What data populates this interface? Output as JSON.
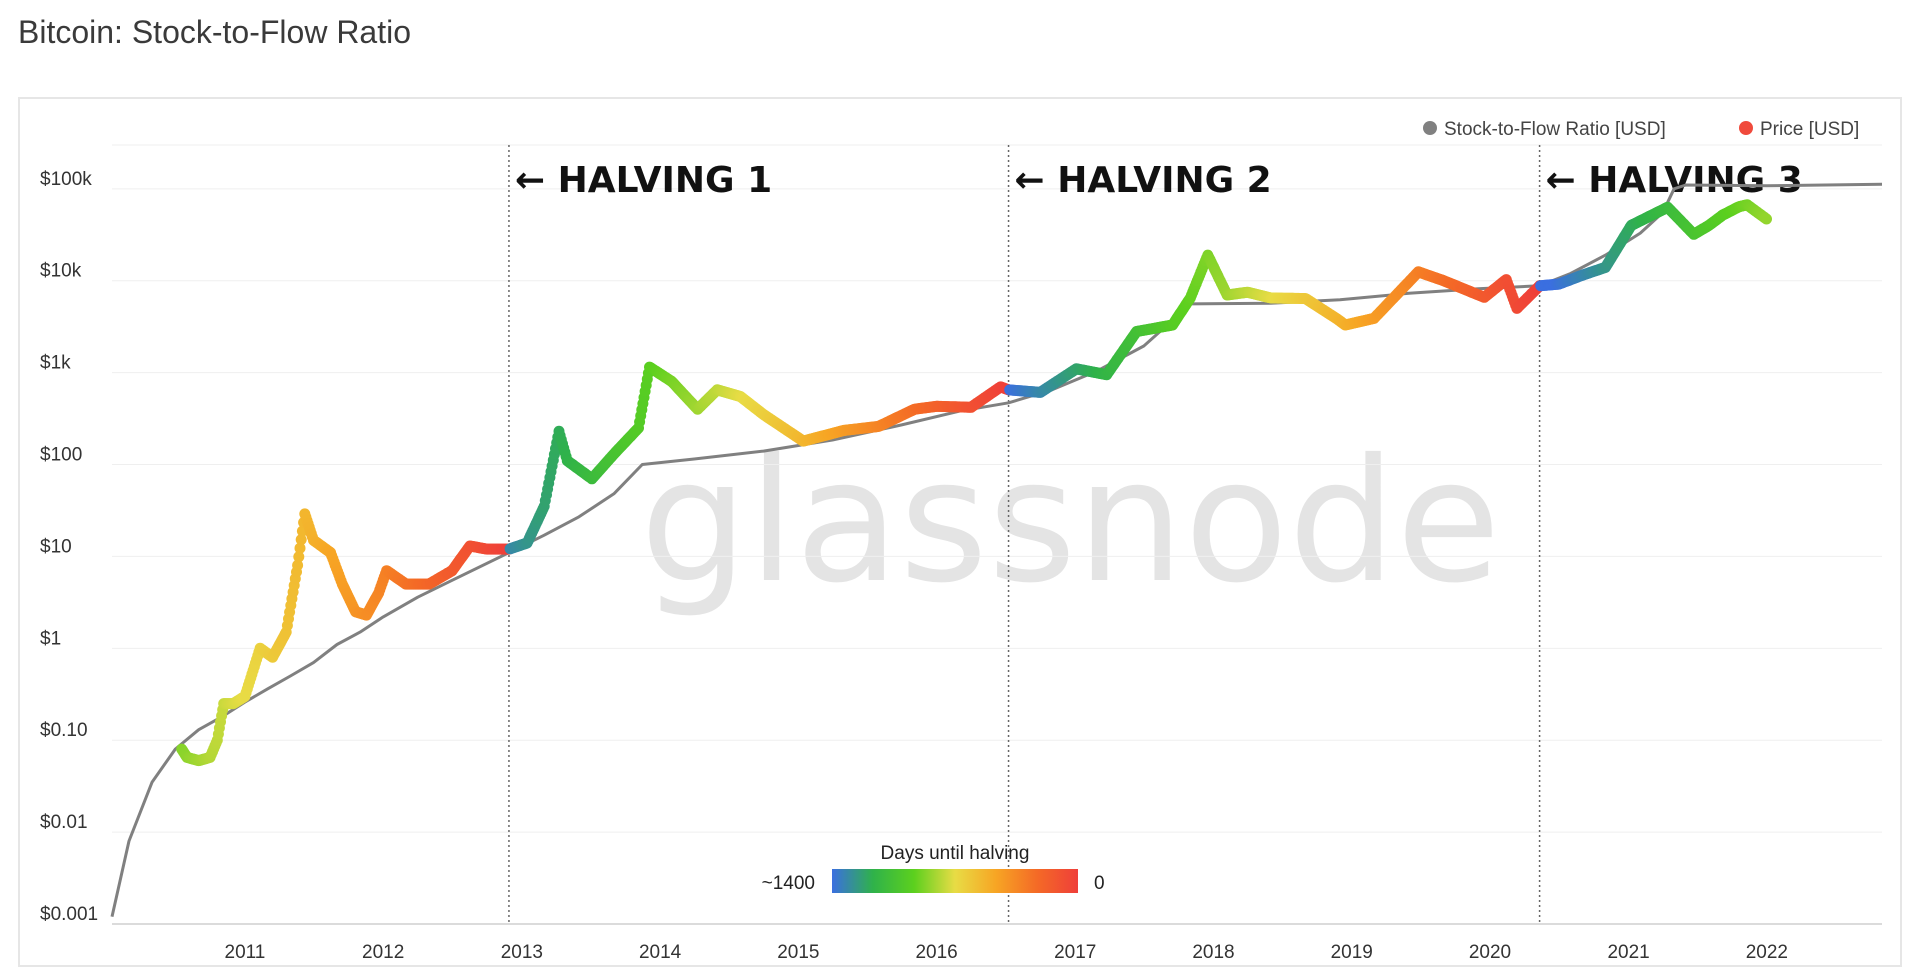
{
  "page": {
    "title": "Bitcoin: Stock-to-Flow Ratio"
  },
  "watermark": "glassnode",
  "chart_data": {
    "type": "scatter",
    "title": "Bitcoin: Stock-to-Flow Ratio",
    "xlabel": "",
    "ylabel": "",
    "y_scale": "log",
    "ylim": [
      0.001,
      300000
    ],
    "xlim": [
      "2010-01-15",
      "2022-11-01"
    ],
    "grid": true,
    "legend_position": "top-right",
    "y_ticks": [
      {
        "value": 0.001,
        "label": "$0.001"
      },
      {
        "value": 0.01,
        "label": "$0.01"
      },
      {
        "value": 0.1,
        "label": "$0.10"
      },
      {
        "value": 1,
        "label": "$1"
      },
      {
        "value": 10,
        "label": "$10"
      },
      {
        "value": 100,
        "label": "$100"
      },
      {
        "value": 1000,
        "label": "$1k"
      },
      {
        "value": 10000,
        "label": "$10k"
      },
      {
        "value": 100000,
        "label": "$100k"
      }
    ],
    "x_ticks": [
      {
        "value": "2011-01-01",
        "label": "2011"
      },
      {
        "value": "2012-01-01",
        "label": "2012"
      },
      {
        "value": "2013-01-01",
        "label": "2013"
      },
      {
        "value": "2014-01-01",
        "label": "2014"
      },
      {
        "value": "2015-01-01",
        "label": "2015"
      },
      {
        "value": "2016-01-01",
        "label": "2016"
      },
      {
        "value": "2017-01-01",
        "label": "2017"
      },
      {
        "value": "2018-01-01",
        "label": "2018"
      },
      {
        "value": "2019-01-01",
        "label": "2019"
      },
      {
        "value": "2020-01-01",
        "label": "2020"
      },
      {
        "value": "2021-01-01",
        "label": "2021"
      },
      {
        "value": "2022-01-01",
        "label": "2022"
      }
    ],
    "halvings": [
      {
        "date": "2012-11-28",
        "label": "← HALVING 1"
      },
      {
        "date": "2016-07-09",
        "label": "← HALVING 2"
      },
      {
        "date": "2020-05-11",
        "label": "← HALVING 3"
      }
    ],
    "legend": [
      {
        "name": "Stock-to-Flow Ratio [USD]",
        "color": "#808080"
      },
      {
        "name": "Price [USD]",
        "color": "#f04a3c"
      }
    ],
    "colorbar": {
      "title": "Days until halving",
      "min_label": "~1400",
      "max_label": "0",
      "colors": [
        "#3b6fe0",
        "#2fb24a",
        "#5cd01e",
        "#e8dc45",
        "#f7a524",
        "#f46a26",
        "#ef3f3a"
      ]
    },
    "series": [
      {
        "name": "Stock-to-Flow Ratio [USD]",
        "color": "#808080",
        "points": [
          [
            "2010-01-15",
            0.0012
          ],
          [
            "2010-03-01",
            0.008
          ],
          [
            "2010-05-01",
            0.035
          ],
          [
            "2010-07-01",
            0.08
          ],
          [
            "2010-09-01",
            0.13
          ],
          [
            "2010-11-01",
            0.18
          ],
          [
            "2011-01-01",
            0.26
          ],
          [
            "2011-03-01",
            0.36
          ],
          [
            "2011-05-01",
            0.5
          ],
          [
            "2011-07-01",
            0.7
          ],
          [
            "2011-09-01",
            1.1
          ],
          [
            "2011-11-01",
            1.5
          ],
          [
            "2012-01-01",
            2.2
          ],
          [
            "2012-04-01",
            3.6
          ],
          [
            "2012-07-01",
            5.5
          ],
          [
            "2012-11-28",
            11
          ],
          [
            "2013-03-01",
            17
          ],
          [
            "2013-06-01",
            27
          ],
          [
            "2013-09-01",
            48
          ],
          [
            "2013-11-15",
            100
          ],
          [
            "2014-04-01",
            115
          ],
          [
            "2014-10-01",
            140
          ],
          [
            "2015-04-01",
            185
          ],
          [
            "2015-10-01",
            270
          ],
          [
            "2016-03-01",
            380
          ],
          [
            "2016-07-09",
            470
          ],
          [
            "2016-11-01",
            650
          ],
          [
            "2017-03-01",
            1050
          ],
          [
            "2017-07-01",
            1950
          ],
          [
            "2017-09-01",
            3300
          ],
          [
            "2017-11-01",
            5600
          ],
          [
            "2018-06-01",
            5700
          ],
          [
            "2018-12-01",
            6200
          ],
          [
            "2019-06-01",
            7300
          ],
          [
            "2019-12-01",
            8200
          ],
          [
            "2020-05-11",
            8800
          ],
          [
            "2020-08-01",
            12000
          ],
          [
            "2020-11-01",
            19000
          ],
          [
            "2021-02-01",
            33000
          ],
          [
            "2021-04-01",
            55000
          ],
          [
            "2021-05-01",
            100000
          ],
          [
            "2021-06-01",
            110000
          ],
          [
            "2022-01-01",
            108000
          ],
          [
            "2022-11-01",
            112000
          ]
        ]
      },
      {
        "name": "Price [USD]",
        "color": "#f04a3c",
        "points": [
          [
            "2010-07-18",
            0.08
          ],
          [
            "2010-08-01",
            0.065
          ],
          [
            "2010-09-01",
            0.06
          ],
          [
            "2010-10-01",
            0.065
          ],
          [
            "2010-10-20",
            0.1
          ],
          [
            "2010-11-06",
            0.25
          ],
          [
            "2010-12-01",
            0.25
          ],
          [
            "2011-01-01",
            0.3
          ],
          [
            "2011-02-10",
            1.0
          ],
          [
            "2011-03-15",
            0.8
          ],
          [
            "2011-04-20",
            1.5
          ],
          [
            "2011-05-20",
            8
          ],
          [
            "2011-06-08",
            29
          ],
          [
            "2011-07-01",
            15
          ],
          [
            "2011-08-15",
            11
          ],
          [
            "2011-09-15",
            5
          ],
          [
            "2011-10-20",
            2.5
          ],
          [
            "2011-11-18",
            2.3
          ],
          [
            "2011-12-20",
            4
          ],
          [
            "2012-01-10",
            7
          ],
          [
            "2012-03-01",
            5
          ],
          [
            "2012-05-01",
            5
          ],
          [
            "2012-07-01",
            7
          ],
          [
            "2012-08-17",
            13
          ],
          [
            "2012-10-01",
            12
          ],
          [
            "2012-11-28",
            12
          ],
          [
            "2013-01-15",
            14
          ],
          [
            "2013-03-01",
            35
          ],
          [
            "2013-04-09",
            230
          ],
          [
            "2013-05-01",
            110
          ],
          [
            "2013-07-05",
            70
          ],
          [
            "2013-09-01",
            130
          ],
          [
            "2013-11-05",
            250
          ],
          [
            "2013-12-04",
            1150
          ],
          [
            "2014-02-01",
            800
          ],
          [
            "2014-04-10",
            400
          ],
          [
            "2014-06-01",
            650
          ],
          [
            "2014-08-01",
            550
          ],
          [
            "2014-10-01",
            350
          ],
          [
            "2015-01-14",
            180
          ],
          [
            "2015-05-01",
            235
          ],
          [
            "2015-08-01",
            260
          ],
          [
            "2015-11-04",
            400
          ],
          [
            "2016-01-01",
            430
          ],
          [
            "2016-04-01",
            420
          ],
          [
            "2016-06-18",
            700
          ],
          [
            "2016-07-09",
            650
          ],
          [
            "2016-10-01",
            610
          ],
          [
            "2017-01-04",
            1100
          ],
          [
            "2017-03-25",
            950
          ],
          [
            "2017-06-12",
            2800
          ],
          [
            "2017-09-15",
            3300
          ],
          [
            "2017-11-01",
            6500
          ],
          [
            "2017-12-17",
            19000
          ],
          [
            "2018-02-06",
            7000
          ],
          [
            "2018-04-01",
            7500
          ],
          [
            "2018-06-01",
            6500
          ],
          [
            "2018-09-01",
            6400
          ],
          [
            "2018-11-25",
            3800
          ],
          [
            "2018-12-15",
            3300
          ],
          [
            "2019-03-01",
            3900
          ],
          [
            "2019-06-26",
            12500
          ],
          [
            "2019-09-01",
            10000
          ],
          [
            "2019-12-17",
            6600
          ],
          [
            "2020-02-13",
            10300
          ],
          [
            "2020-03-12",
            5000
          ],
          [
            "2020-05-11",
            8800
          ],
          [
            "2020-07-01",
            9200
          ],
          [
            "2020-09-01",
            11500
          ],
          [
            "2020-11-01",
            14000
          ],
          [
            "2021-01-08",
            40000
          ],
          [
            "2021-04-14",
            63000
          ],
          [
            "2021-06-22",
            32000
          ],
          [
            "2021-08-01",
            40000
          ],
          [
            "2021-09-07",
            52000
          ],
          [
            "2021-10-20",
            64000
          ],
          [
            "2021-11-10",
            67000
          ],
          [
            "2021-12-31",
            47000
          ]
        ]
      }
    ]
  }
}
